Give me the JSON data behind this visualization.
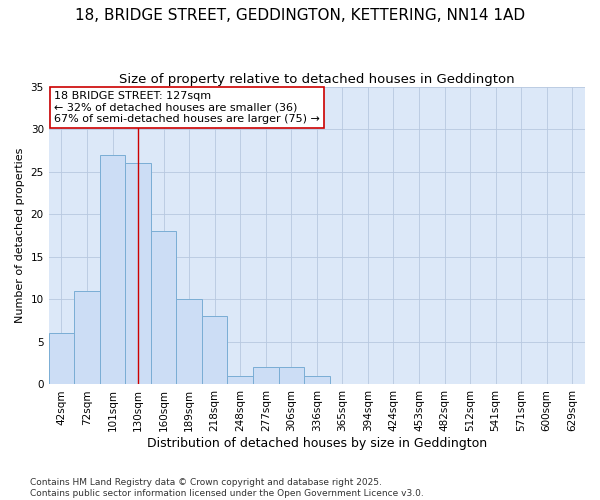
{
  "title1": "18, BRIDGE STREET, GEDDINGTON, KETTERING, NN14 1AD",
  "title2": "Size of property relative to detached houses in Geddington",
  "xlabel": "Distribution of detached houses by size in Geddington",
  "ylabel": "Number of detached properties",
  "categories": [
    "42sqm",
    "72sqm",
    "101sqm",
    "130sqm",
    "160sqm",
    "189sqm",
    "218sqm",
    "248sqm",
    "277sqm",
    "306sqm",
    "336sqm",
    "365sqm",
    "394sqm",
    "424sqm",
    "453sqm",
    "482sqm",
    "512sqm",
    "541sqm",
    "571sqm",
    "600sqm",
    "629sqm"
  ],
  "values": [
    6,
    11,
    27,
    26,
    18,
    10,
    8,
    1,
    2,
    2,
    1,
    0,
    0,
    0,
    0,
    0,
    0,
    0,
    0,
    0,
    0
  ],
  "bar_color": "#ccddf5",
  "bar_edge_color": "#7aadd4",
  "grid_color": "#b8c8e0",
  "plot_bg_color": "#dce8f8",
  "fig_bg_color": "#ffffff",
  "vline_x": 3,
  "vline_color": "#cc0000",
  "annotation_text": "18 BRIDGE STREET: 127sqm\n← 32% of detached houses are smaller (36)\n67% of semi-detached houses are larger (75) →",
  "annotation_box_facecolor": "#ffffff",
  "annotation_box_edgecolor": "#cc0000",
  "footnote": "Contains HM Land Registry data © Crown copyright and database right 2025.\nContains public sector information licensed under the Open Government Licence v3.0.",
  "ylim": [
    0,
    35
  ],
  "yticks": [
    0,
    5,
    10,
    15,
    20,
    25,
    30,
    35
  ],
  "title1_fontsize": 11,
  "title2_fontsize": 9.5,
  "xlabel_fontsize": 9,
  "ylabel_fontsize": 8,
  "tick_fontsize": 7.5,
  "annotation_fontsize": 8,
  "footnote_fontsize": 6.5
}
